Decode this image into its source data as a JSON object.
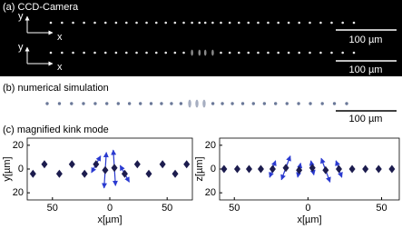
{
  "panels": {
    "a": {
      "title": "(a) CCD-Camera",
      "rows": [
        {
          "y": "y",
          "x": "x",
          "scale_bar": "100 µm"
        },
        {
          "y": "y",
          "x": "x",
          "scale_bar": "100 µm"
        }
      ]
    },
    "b": {
      "title": "(b) numerical simulation",
      "scale_bar": "100 µm"
    },
    "c": {
      "title": "(c) magnified kink mode"
    }
  },
  "chart_data": [
    {
      "type": "scatter",
      "xlabel": "x[µm]",
      "ylabel": "y[µm]",
      "xlim": [
        -72,
        72
      ],
      "ylim": [
        -26,
        26
      ],
      "xticks": [
        {
          "value": -50,
          "label": "50"
        },
        0,
        50
      ],
      "yticks": [
        {
          "value": -20,
          "label": "20"
        },
        0,
        20
      ],
      "x": [
        -67,
        -57,
        -44,
        -33,
        -22,
        -12,
        -4,
        4,
        13,
        24,
        34,
        46,
        57,
        67
      ],
      "series": [
        {
          "color": "#1c1c4e",
          "values": [
            -4,
            4,
            -4,
            4,
            -4,
            4,
            -1,
            1,
            -4,
            4,
            -4,
            4,
            -4,
            4
          ]
        }
      ],
      "arrows": {
        "color": "#2a3ad0",
        "dx": [
          null,
          null,
          null,
          null,
          null,
          4,
          1,
          -1,
          -4,
          null,
          null,
          null,
          null,
          null
        ],
        "dy": [
          null,
          null,
          null,
          null,
          null,
          7,
          15,
          15,
          7,
          null,
          null,
          null,
          null,
          null
        ]
      }
    },
    {
      "type": "scatter",
      "xlabel": "x[µm]",
      "ylabel": "z[µm]",
      "xlim": [
        -60,
        62
      ],
      "ylim": [
        -26,
        26
      ],
      "xticks": [
        {
          "value": -50,
          "label": "50"
        },
        0,
        50
      ],
      "yticks": [
        {
          "value": -20,
          "label": "20"
        },
        0,
        20
      ],
      "x": [
        -57,
        -48,
        -40,
        -32,
        -24,
        -15,
        -6,
        3,
        12,
        21,
        30,
        39,
        48,
        57
      ],
      "series": [
        {
          "color": "#1c1c4e",
          "values": [
            0,
            0,
            0,
            0,
            0,
            1,
            -1,
            1,
            -1,
            0,
            0,
            0,
            0,
            0
          ]
        }
      ],
      "arrows": {
        "color": "#2a3ad0",
        "dx": [
          null,
          null,
          null,
          null,
          2,
          3,
          1,
          -1,
          -3,
          -2,
          null,
          null,
          null,
          null
        ],
        "dy": [
          null,
          null,
          null,
          null,
          7,
          10,
          6,
          6,
          10,
          7,
          null,
          null,
          null,
          null
        ]
      }
    }
  ]
}
